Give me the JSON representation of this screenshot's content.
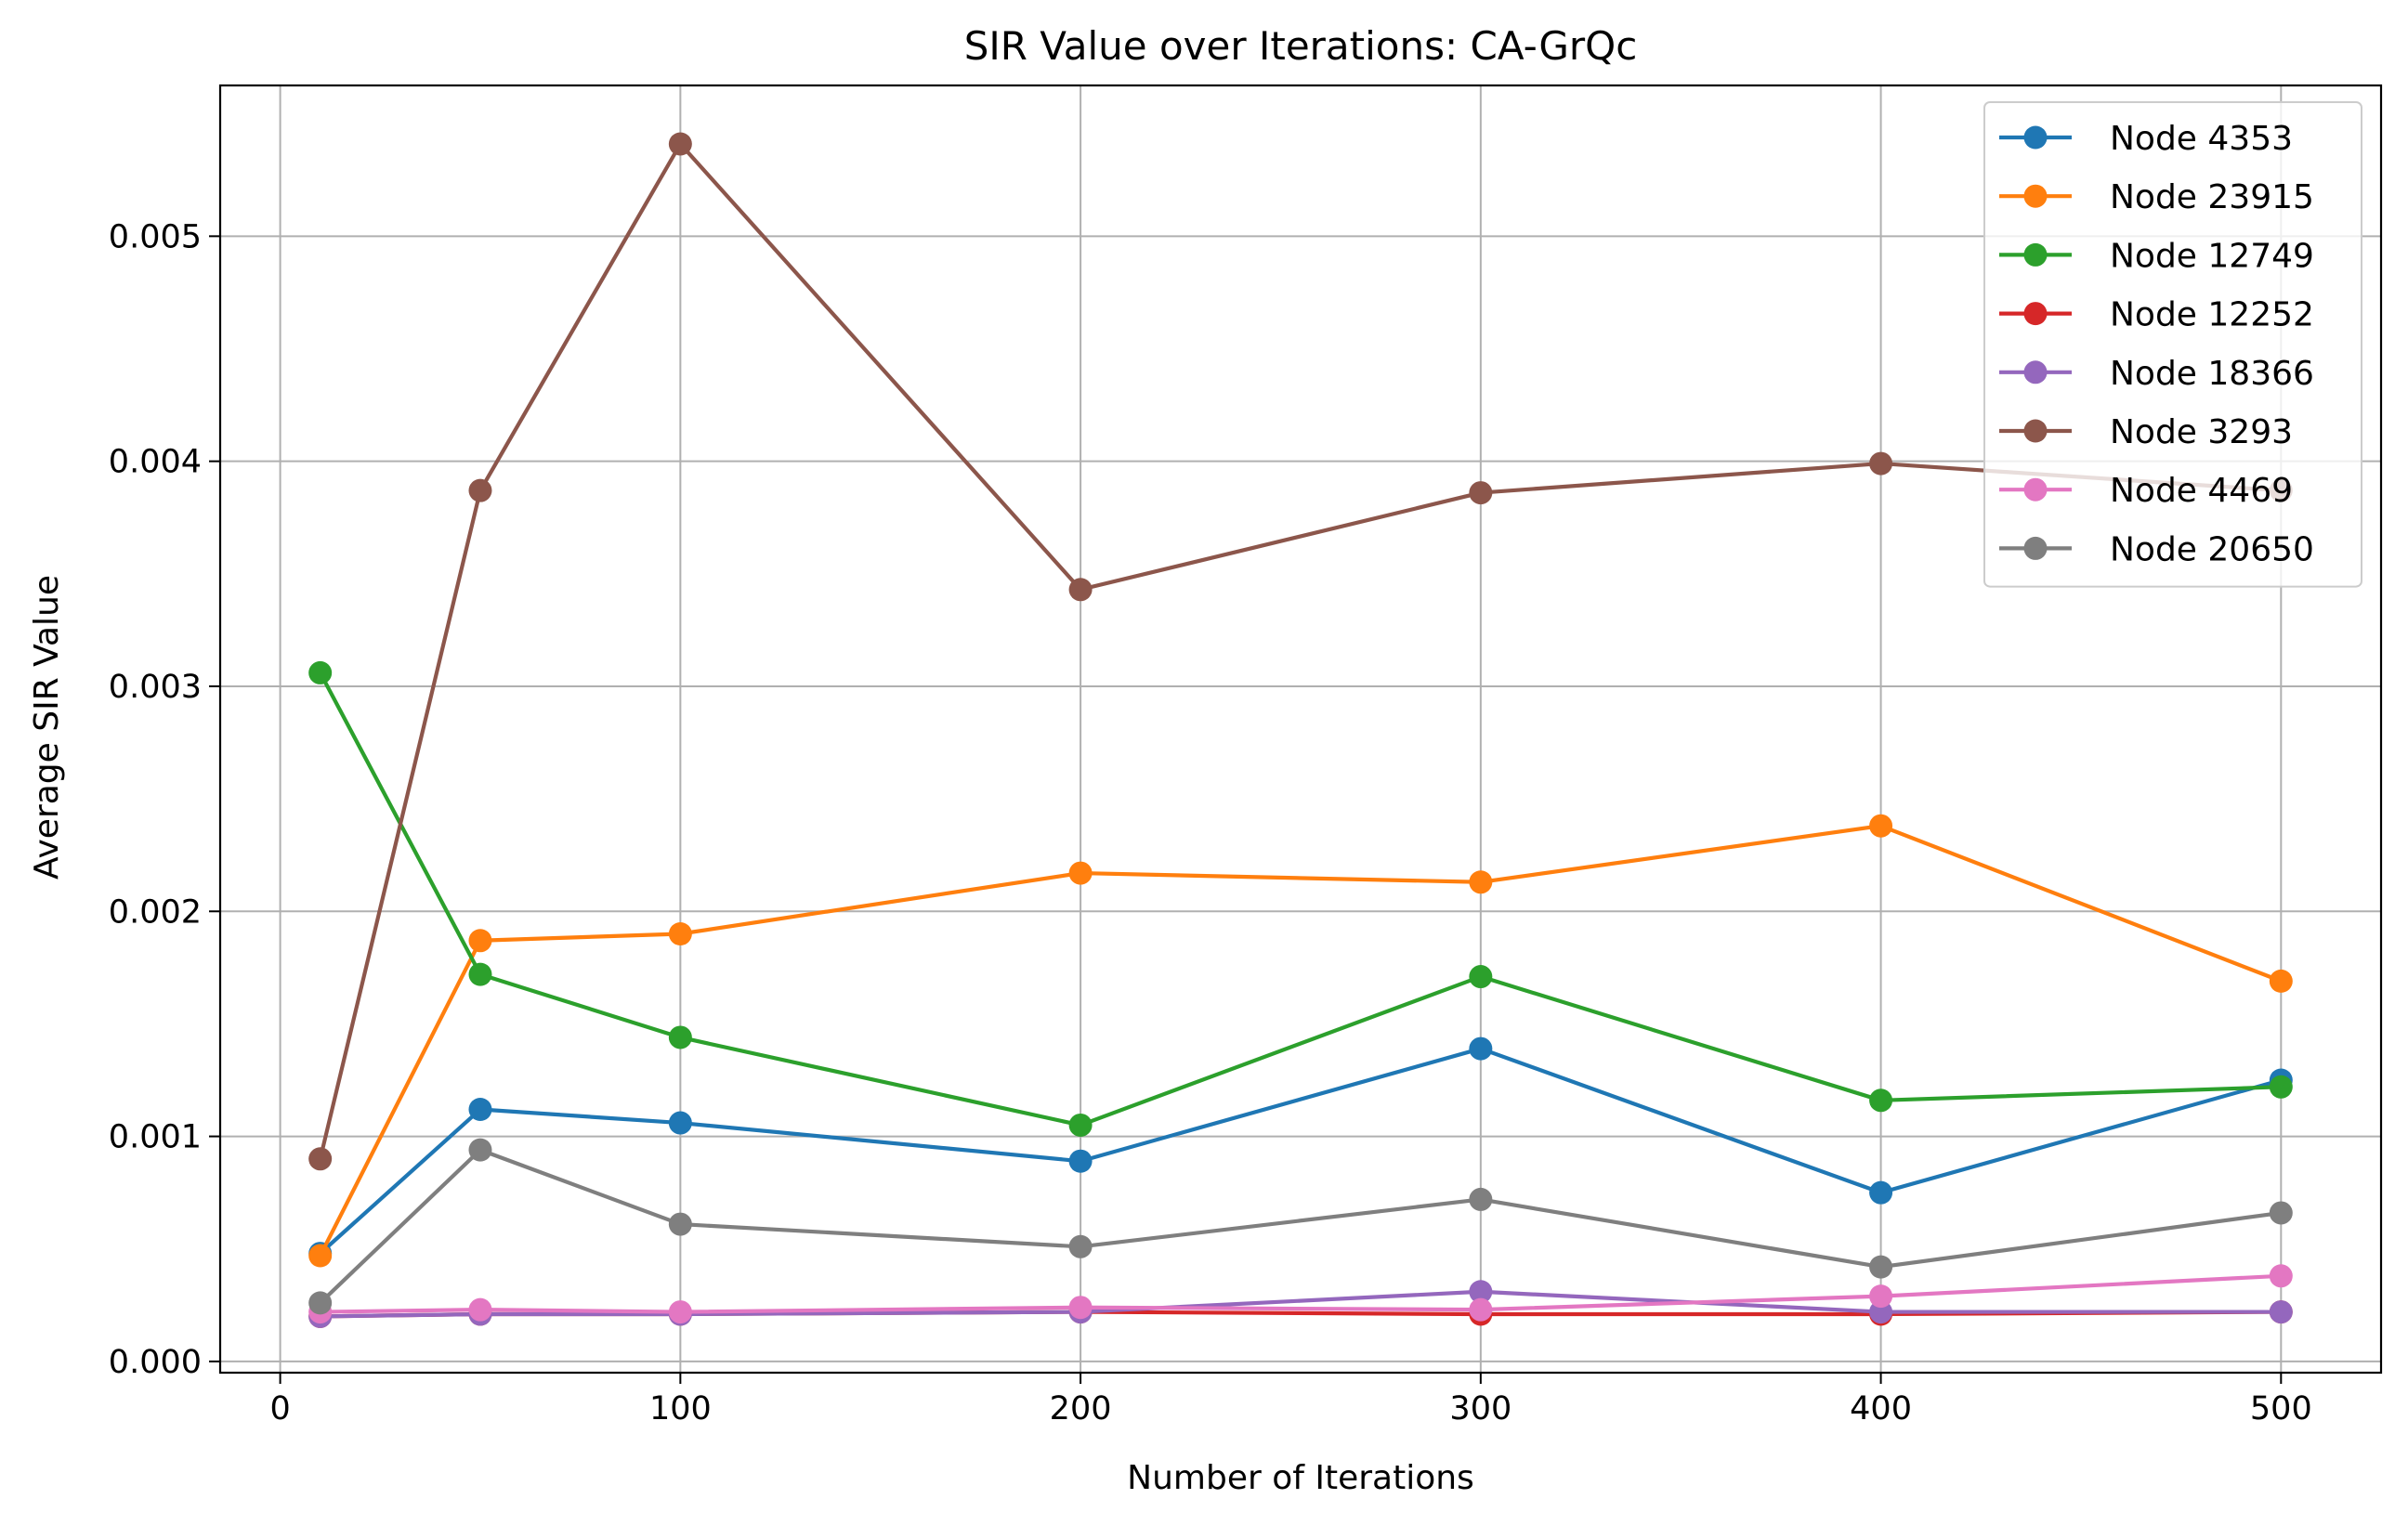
{
  "chart_data": {
    "type": "line",
    "title": "SIR Value over Iterations: CA-GrQc",
    "xlabel": "Number of Iterations",
    "ylabel": "Average SIR Value",
    "xlim": [
      -15,
      525
    ],
    "ylim": [
      -5e-05,
      0.00567
    ],
    "xticks": [
      0,
      100,
      200,
      300,
      400,
      500
    ],
    "xtick_labels": [
      "0",
      "100",
      "200",
      "300",
      "400",
      "500"
    ],
    "yticks": [
      0.0,
      0.001,
      0.002,
      0.003,
      0.004,
      0.005
    ],
    "ytick_labels": [
      "0.000",
      "0.001",
      "0.002",
      "0.003",
      "0.004",
      "0.005"
    ],
    "grid": true,
    "legend_position": "top-right",
    "x": [
      10,
      50,
      100,
      200,
      300,
      400,
      500
    ],
    "series": [
      {
        "name": "Node 4353",
        "color": "#1f77b4",
        "values": [
          0.00048,
          0.00112,
          0.00106,
          0.00089,
          0.00139,
          0.00075,
          0.00125
        ]
      },
      {
        "name": "Node 23915",
        "color": "#ff7f0e",
        "values": [
          0.00047,
          0.00187,
          0.0019,
          0.00217,
          0.00213,
          0.00238,
          0.00169
        ]
      },
      {
        "name": "Node 12749",
        "color": "#2ca02c",
        "values": [
          0.00306,
          0.00172,
          0.00144,
          0.00105,
          0.00171,
          0.00116,
          0.00122
        ]
      },
      {
        "name": "Node 12252",
        "color": "#d62728",
        "values": [
          0.0002,
          0.00021,
          0.00021,
          0.00022,
          0.00021,
          0.00021,
          0.00022
        ]
      },
      {
        "name": "Node 18366",
        "color": "#9467bd",
        "values": [
          0.0002,
          0.00021,
          0.00021,
          0.00022,
          0.00031,
          0.00022,
          0.00022
        ]
      },
      {
        "name": "Node 3293",
        "color": "#8c564b",
        "values": [
          0.0009,
          0.00387,
          0.00541,
          0.00343,
          0.00386,
          0.00399,
          0.00387
        ]
      },
      {
        "name": "Node 4469",
        "color": "#e377c2",
        "values": [
          0.00022,
          0.00023,
          0.00022,
          0.00024,
          0.00023,
          0.00029,
          0.00038
        ]
      },
      {
        "name": "Node 20650",
        "color": "#7f7f7f",
        "values": [
          0.00026,
          0.00094,
          0.00061,
          0.00051,
          0.00072,
          0.00042,
          0.00066
        ]
      }
    ]
  }
}
